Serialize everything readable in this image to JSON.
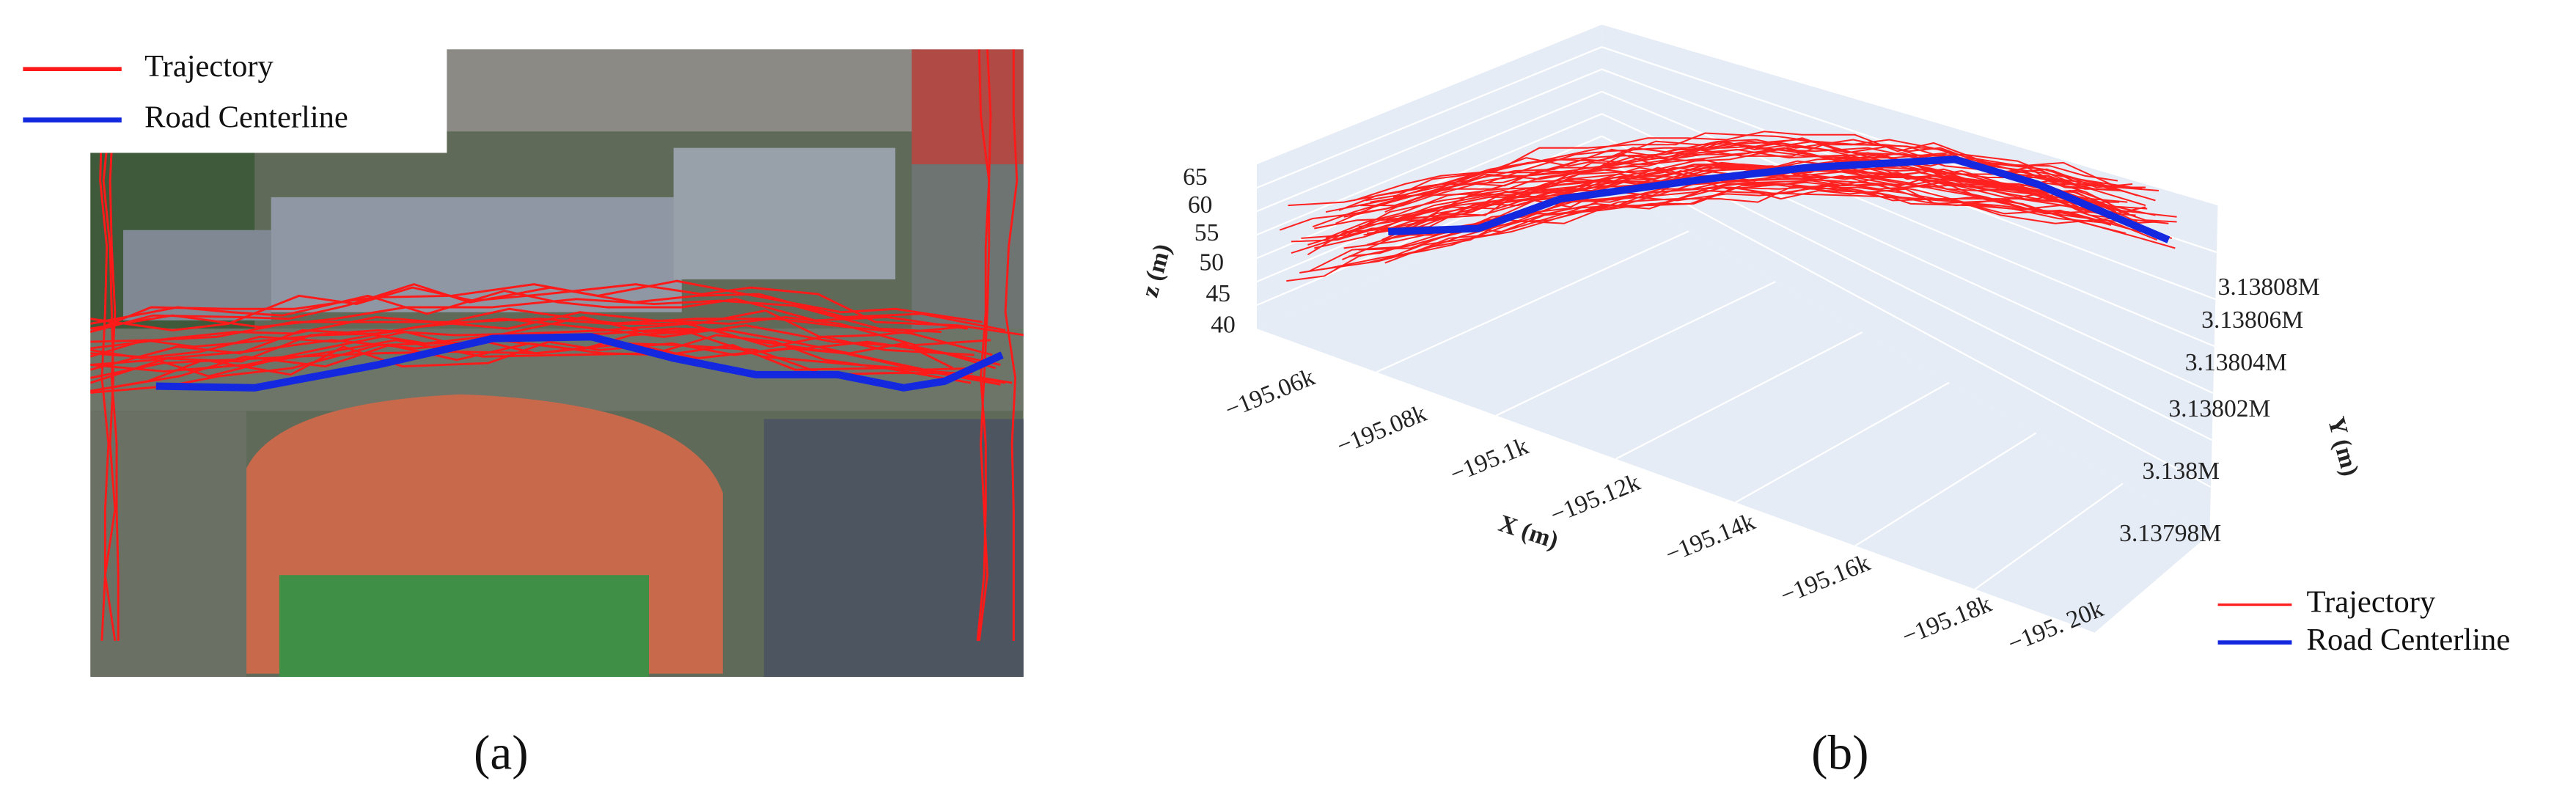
{
  "panel_a": {
    "legend": [
      "Trajectory",
      "Road Centerline"
    ],
    "label": "(a)"
  },
  "panel_b": {
    "z_axis": {
      "title": "z (m)",
      "ticks": [
        "40",
        "45",
        "50",
        "55",
        "60",
        "65"
      ]
    },
    "x_axis": {
      "title": "X (m)",
      "ticks": [
        "−195.06k",
        "−195.08k",
        "−195.1k",
        "−195.12k",
        "−195.14k",
        "−195.16k",
        "−195.18k",
        "−195. 20k"
      ]
    },
    "y_axis": {
      "title": "Y (m)",
      "ticks": [
        "3.13808M",
        "3.13806M",
        "3.13804M",
        "3.13802M",
        "3.138M",
        "3.13798M"
      ]
    },
    "legend": [
      "Trajectory",
      "Road Centerline"
    ],
    "label": "(b)"
  }
}
